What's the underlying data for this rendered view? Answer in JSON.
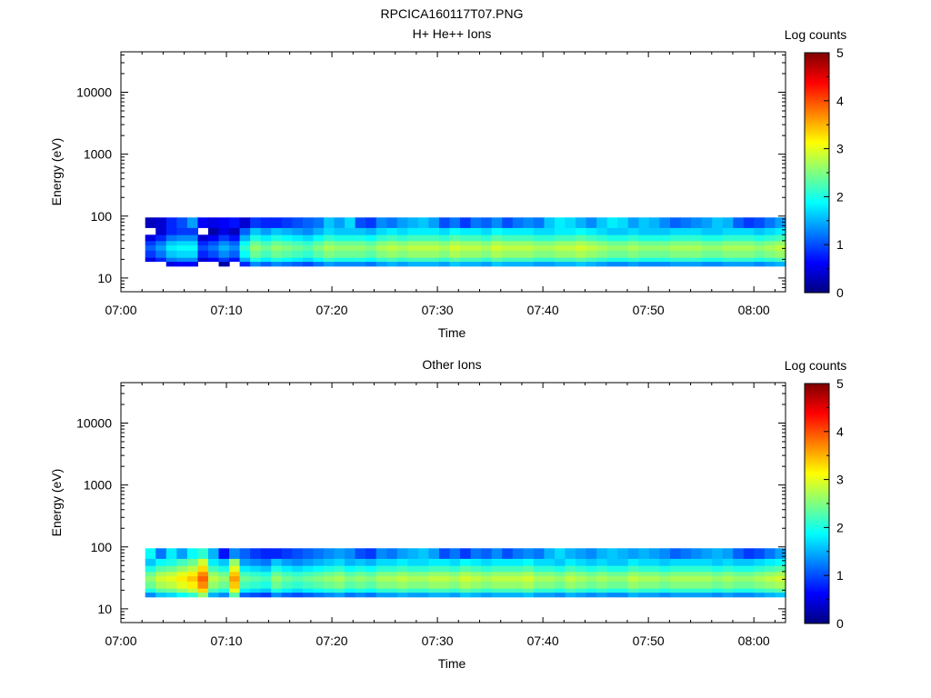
{
  "figure": {
    "title": "RPCICA160117T07.PNG"
  },
  "chart_data": [
    {
      "type": "heatmap",
      "title": "H+ He++ Ions",
      "xlabel": "Time",
      "ylabel": "Energy (eV)",
      "x_ticks": [
        "07:00",
        "07:10",
        "07:20",
        "07:30",
        "07:40",
        "07:50",
        "08:00"
      ],
      "xlim": [
        "07:00",
        "08:03"
      ],
      "y_scale": "log",
      "y_ticks": [
        10,
        100,
        1000,
        10000
      ],
      "ylim": [
        6,
        45000
      ],
      "colorbar": {
        "label": "Log counts",
        "ticks": [
          0,
          1,
          2,
          3,
          4,
          5
        ],
        "range": [
          0,
          5
        ],
        "colormap": "jet"
      },
      "start_minute": 2.3,
      "band": {
        "core_energy_eV": 25,
        "core_log_counts": [
          1.1,
          1.4,
          1.8,
          1.9,
          1.9,
          1.0,
          1.2,
          1.5,
          1.3,
          2.1,
          2.6,
          2.4,
          2.6,
          2.5,
          2.4,
          2.3,
          2.5,
          2.7,
          2.6,
          2.6,
          2.6,
          2.5,
          2.7,
          2.8,
          2.7,
          2.8,
          2.8,
          2.8,
          2.7,
          2.9,
          2.8,
          2.8,
          2.7,
          2.9,
          2.8,
          2.8,
          2.8,
          2.7,
          2.7,
          2.8,
          2.8,
          2.9,
          2.8,
          2.7,
          2.6,
          2.6,
          2.7,
          2.6,
          2.6,
          2.6,
          2.7,
          2.7,
          2.7,
          2.6,
          2.6,
          2.7,
          2.7,
          2.7,
          2.6,
          2.7,
          2.8
        ],
        "upper_energy_eV": 65,
        "upper_log_counts": [
          0.3,
          0.4,
          0.8,
          1.0,
          1.4,
          0.6,
          0.5,
          0.6,
          0.7,
          0.4,
          0.9,
          0.8,
          0.8,
          0.9,
          1.0,
          1.1,
          1.2,
          1.6,
          1.4,
          1.7,
          1.0,
          0.9,
          1.3,
          1.2,
          1.4,
          1.5,
          1.6,
          1.4,
          1.0,
          1.2,
          0.9,
          1.2,
          1.1,
          1.3,
          1.0,
          1.2,
          1.3,
          1.2,
          1.6,
          1.8,
          1.7,
          1.5,
          1.3,
          1.6,
          1.8,
          1.7,
          1.4,
          1.6,
          1.5,
          1.3,
          1.1,
          1.2,
          1.3,
          1.4,
          1.6,
          1.5,
          1.1,
          0.9,
          1.0,
          1.2,
          1.4
        ],
        "upper_extent_eV": 95
      }
    },
    {
      "type": "heatmap",
      "title": "Other Ions",
      "xlabel": "Time",
      "ylabel": "Energy (eV)",
      "x_ticks": [
        "07:00",
        "07:10",
        "07:20",
        "07:30",
        "07:40",
        "07:50",
        "08:00"
      ],
      "xlim": [
        "07:00",
        "08:03"
      ],
      "y_scale": "log",
      "y_ticks": [
        10,
        100,
        1000,
        10000
      ],
      "ylim": [
        6,
        45000
      ],
      "colorbar": {
        "label": "Log counts",
        "ticks": [
          0,
          1,
          2,
          3,
          4,
          5
        ],
        "range": [
          0,
          5
        ],
        "colormap": "jet"
      },
      "start_minute": 2.3,
      "band": {
        "core_energy_eV": 25,
        "core_log_counts": [
          2.6,
          2.9,
          3.0,
          3.2,
          3.4,
          3.9,
          2.8,
          2.6,
          3.6,
          2.4,
          2.3,
          2.2,
          2.6,
          2.4,
          2.3,
          2.4,
          2.5,
          2.6,
          2.7,
          2.5,
          2.6,
          2.5,
          2.7,
          2.7,
          2.8,
          2.7,
          2.7,
          2.8,
          2.8,
          2.7,
          2.9,
          2.8,
          2.7,
          2.8,
          2.8,
          2.8,
          2.9,
          2.7,
          2.7,
          2.6,
          2.8,
          2.7,
          2.6,
          2.7,
          2.6,
          2.6,
          2.8,
          2.7,
          2.7,
          2.6,
          2.7,
          2.7,
          2.7,
          2.7,
          2.6,
          2.7,
          2.6,
          2.6,
          2.7,
          2.8,
          2.9
        ],
        "upper_energy_eV": 65,
        "upper_log_counts": [
          1.9,
          1.2,
          1.8,
          1.4,
          1.9,
          2.1,
          1.5,
          0.7,
          1.3,
          1.1,
          0.9,
          0.8,
          0.8,
          0.9,
          1.0,
          1.1,
          1.2,
          1.3,
          1.4,
          1.3,
          1.0,
          0.9,
          1.3,
          1.2,
          1.4,
          1.5,
          1.6,
          1.4,
          1.0,
          1.2,
          0.9,
          1.2,
          1.1,
          1.3,
          1.0,
          1.2,
          1.3,
          1.2,
          1.5,
          1.7,
          1.5,
          1.4,
          1.3,
          1.5,
          1.6,
          1.5,
          1.4,
          1.5,
          1.4,
          1.3,
          1.1,
          1.2,
          1.3,
          1.4,
          1.5,
          1.4,
          1.1,
          0.9,
          1.0,
          1.2,
          1.4
        ],
        "upper_extent_eV": 95
      }
    }
  ]
}
